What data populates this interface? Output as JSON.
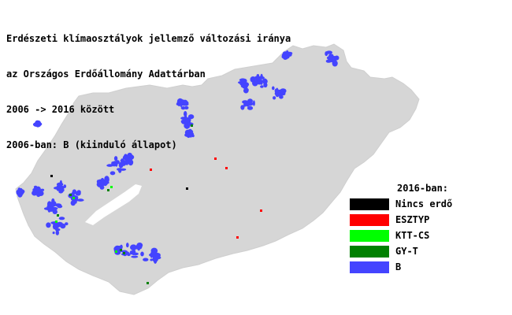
{
  "title_lines": [
    "Erdészeti klímaosztályok jellemző változási iránya",
    "az Országos Erdőállomány Adattárban",
    "2006 -> 2016 között",
    "2006-ban: B (kiinduló állapot)"
  ],
  "legend": {
    "title": "2016-ban:",
    "items": [
      {
        "label": "Nincs erdő",
        "color": "#000000"
      },
      {
        "label": "ESZTYP",
        "color": "#ff0000"
      },
      {
        "label": "KTT-CS",
        "color": "#00ff00"
      },
      {
        "label": "GY-T",
        "color": "#008000"
      },
      {
        "label": "B",
        "color": "#4444ff"
      }
    ]
  },
  "colors": {
    "country": "#d6d6d6",
    "lake": "#ffffff"
  }
}
